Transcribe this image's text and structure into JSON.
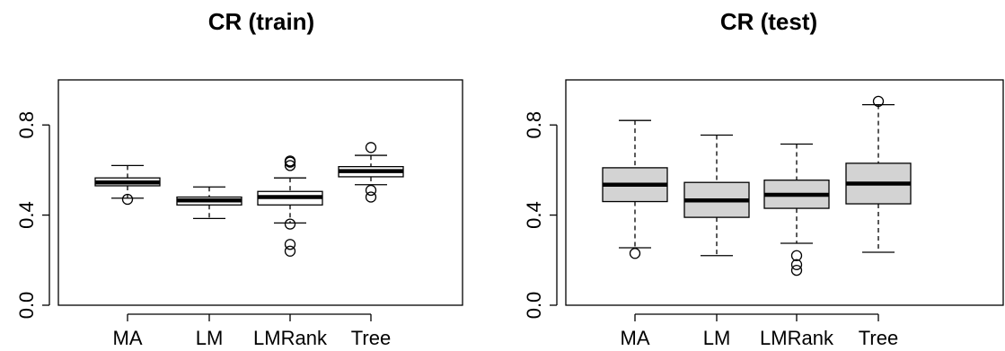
{
  "chart_data": [
    {
      "type": "box",
      "title": "CR (train)",
      "xlabel": "",
      "ylabel": "",
      "ylim": [
        0.0,
        1.0
      ],
      "yticks": [
        0.0,
        0.4,
        0.8
      ],
      "ytick_labels": [
        "0.0",
        "0.4",
        "0.8"
      ],
      "categories": [
        "MA",
        "LM",
        "LMRank",
        "Tree"
      ],
      "box_fill": "#ffffff",
      "boxes": [
        {
          "q1": 0.53,
          "median": 0.545,
          "q3": 0.565,
          "whisker_low": 0.475,
          "whisker_high": 0.62,
          "outliers": [
            0.47
          ]
        },
        {
          "q1": 0.445,
          "median": 0.465,
          "q3": 0.48,
          "whisker_low": 0.385,
          "whisker_high": 0.525,
          "outliers": []
        },
        {
          "q1": 0.445,
          "median": 0.48,
          "q3": 0.505,
          "whisker_low": 0.365,
          "whisker_high": 0.565,
          "outliers": [
            0.64,
            0.635,
            0.62,
            0.36,
            0.27,
            0.24
          ]
        },
        {
          "q1": 0.57,
          "median": 0.595,
          "q3": 0.615,
          "whisker_low": 0.535,
          "whisker_high": 0.665,
          "outliers": [
            0.7,
            0.51,
            0.48
          ]
        }
      ]
    },
    {
      "type": "box",
      "title": "CR (test)",
      "xlabel": "",
      "ylabel": "",
      "ylim": [
        0.0,
        1.0
      ],
      "yticks": [
        0.0,
        0.4,
        0.8
      ],
      "ytick_labels": [
        "0.0",
        "0.4",
        "0.8"
      ],
      "categories": [
        "MA",
        "LM",
        "LMRank",
        "Tree"
      ],
      "box_fill": "#d3d3d3",
      "boxes": [
        {
          "q1": 0.46,
          "median": 0.535,
          "q3": 0.61,
          "whisker_low": 0.255,
          "whisker_high": 0.82,
          "outliers": [
            0.23
          ]
        },
        {
          "q1": 0.39,
          "median": 0.465,
          "q3": 0.545,
          "whisker_low": 0.22,
          "whisker_high": 0.755,
          "outliers": []
        },
        {
          "q1": 0.43,
          "median": 0.49,
          "q3": 0.555,
          "whisker_low": 0.275,
          "whisker_high": 0.715,
          "outliers": [
            0.22,
            0.18,
            0.155
          ]
        },
        {
          "q1": 0.45,
          "median": 0.54,
          "q3": 0.63,
          "whisker_low": 0.235,
          "whisker_high": 0.89,
          "outliers": [
            0.905
          ]
        }
      ]
    }
  ]
}
